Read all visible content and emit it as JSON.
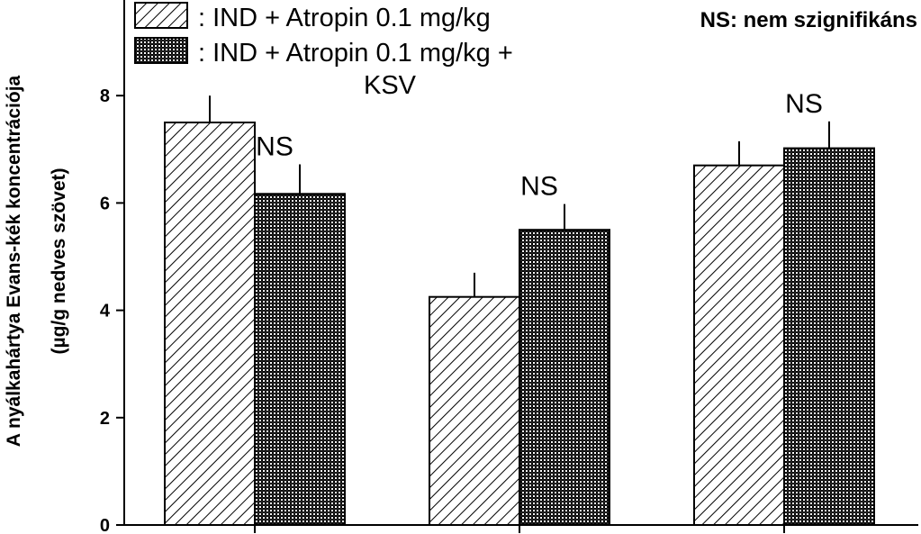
{
  "chart_data": {
    "type": "bar",
    "title": "",
    "xlabel": "",
    "ylabel_line1": "A nyálkahártya Evans-kék koncentrációja",
    "ylabel_line2": "(µg/g nedves szövet)",
    "ylim": [
      0,
      9.6
    ],
    "yticks": [
      0,
      2,
      4,
      6,
      8
    ],
    "grid": false,
    "legend_position": "top-left",
    "categories": [
      "",
      "",
      ""
    ],
    "series": [
      {
        "name": ": IND + Atropin 0.1 mg/kg",
        "pattern": "diagonal-hatch",
        "values": [
          7.5,
          4.25,
          6.7
        ],
        "errors": [
          0.5,
          0.45,
          0.45
        ]
      },
      {
        "name_line1": ": IND + Atropin 0.1 mg/kg +",
        "name_line2": "KSV",
        "pattern": "crosshatch",
        "values": [
          6.17,
          5.5,
          7.02
        ],
        "errors": [
          0.55,
          0.48,
          0.5
        ]
      }
    ],
    "significance_labels": [
      "NS",
      "NS",
      "NS"
    ],
    "note": "NS: nem szignifikáns"
  }
}
